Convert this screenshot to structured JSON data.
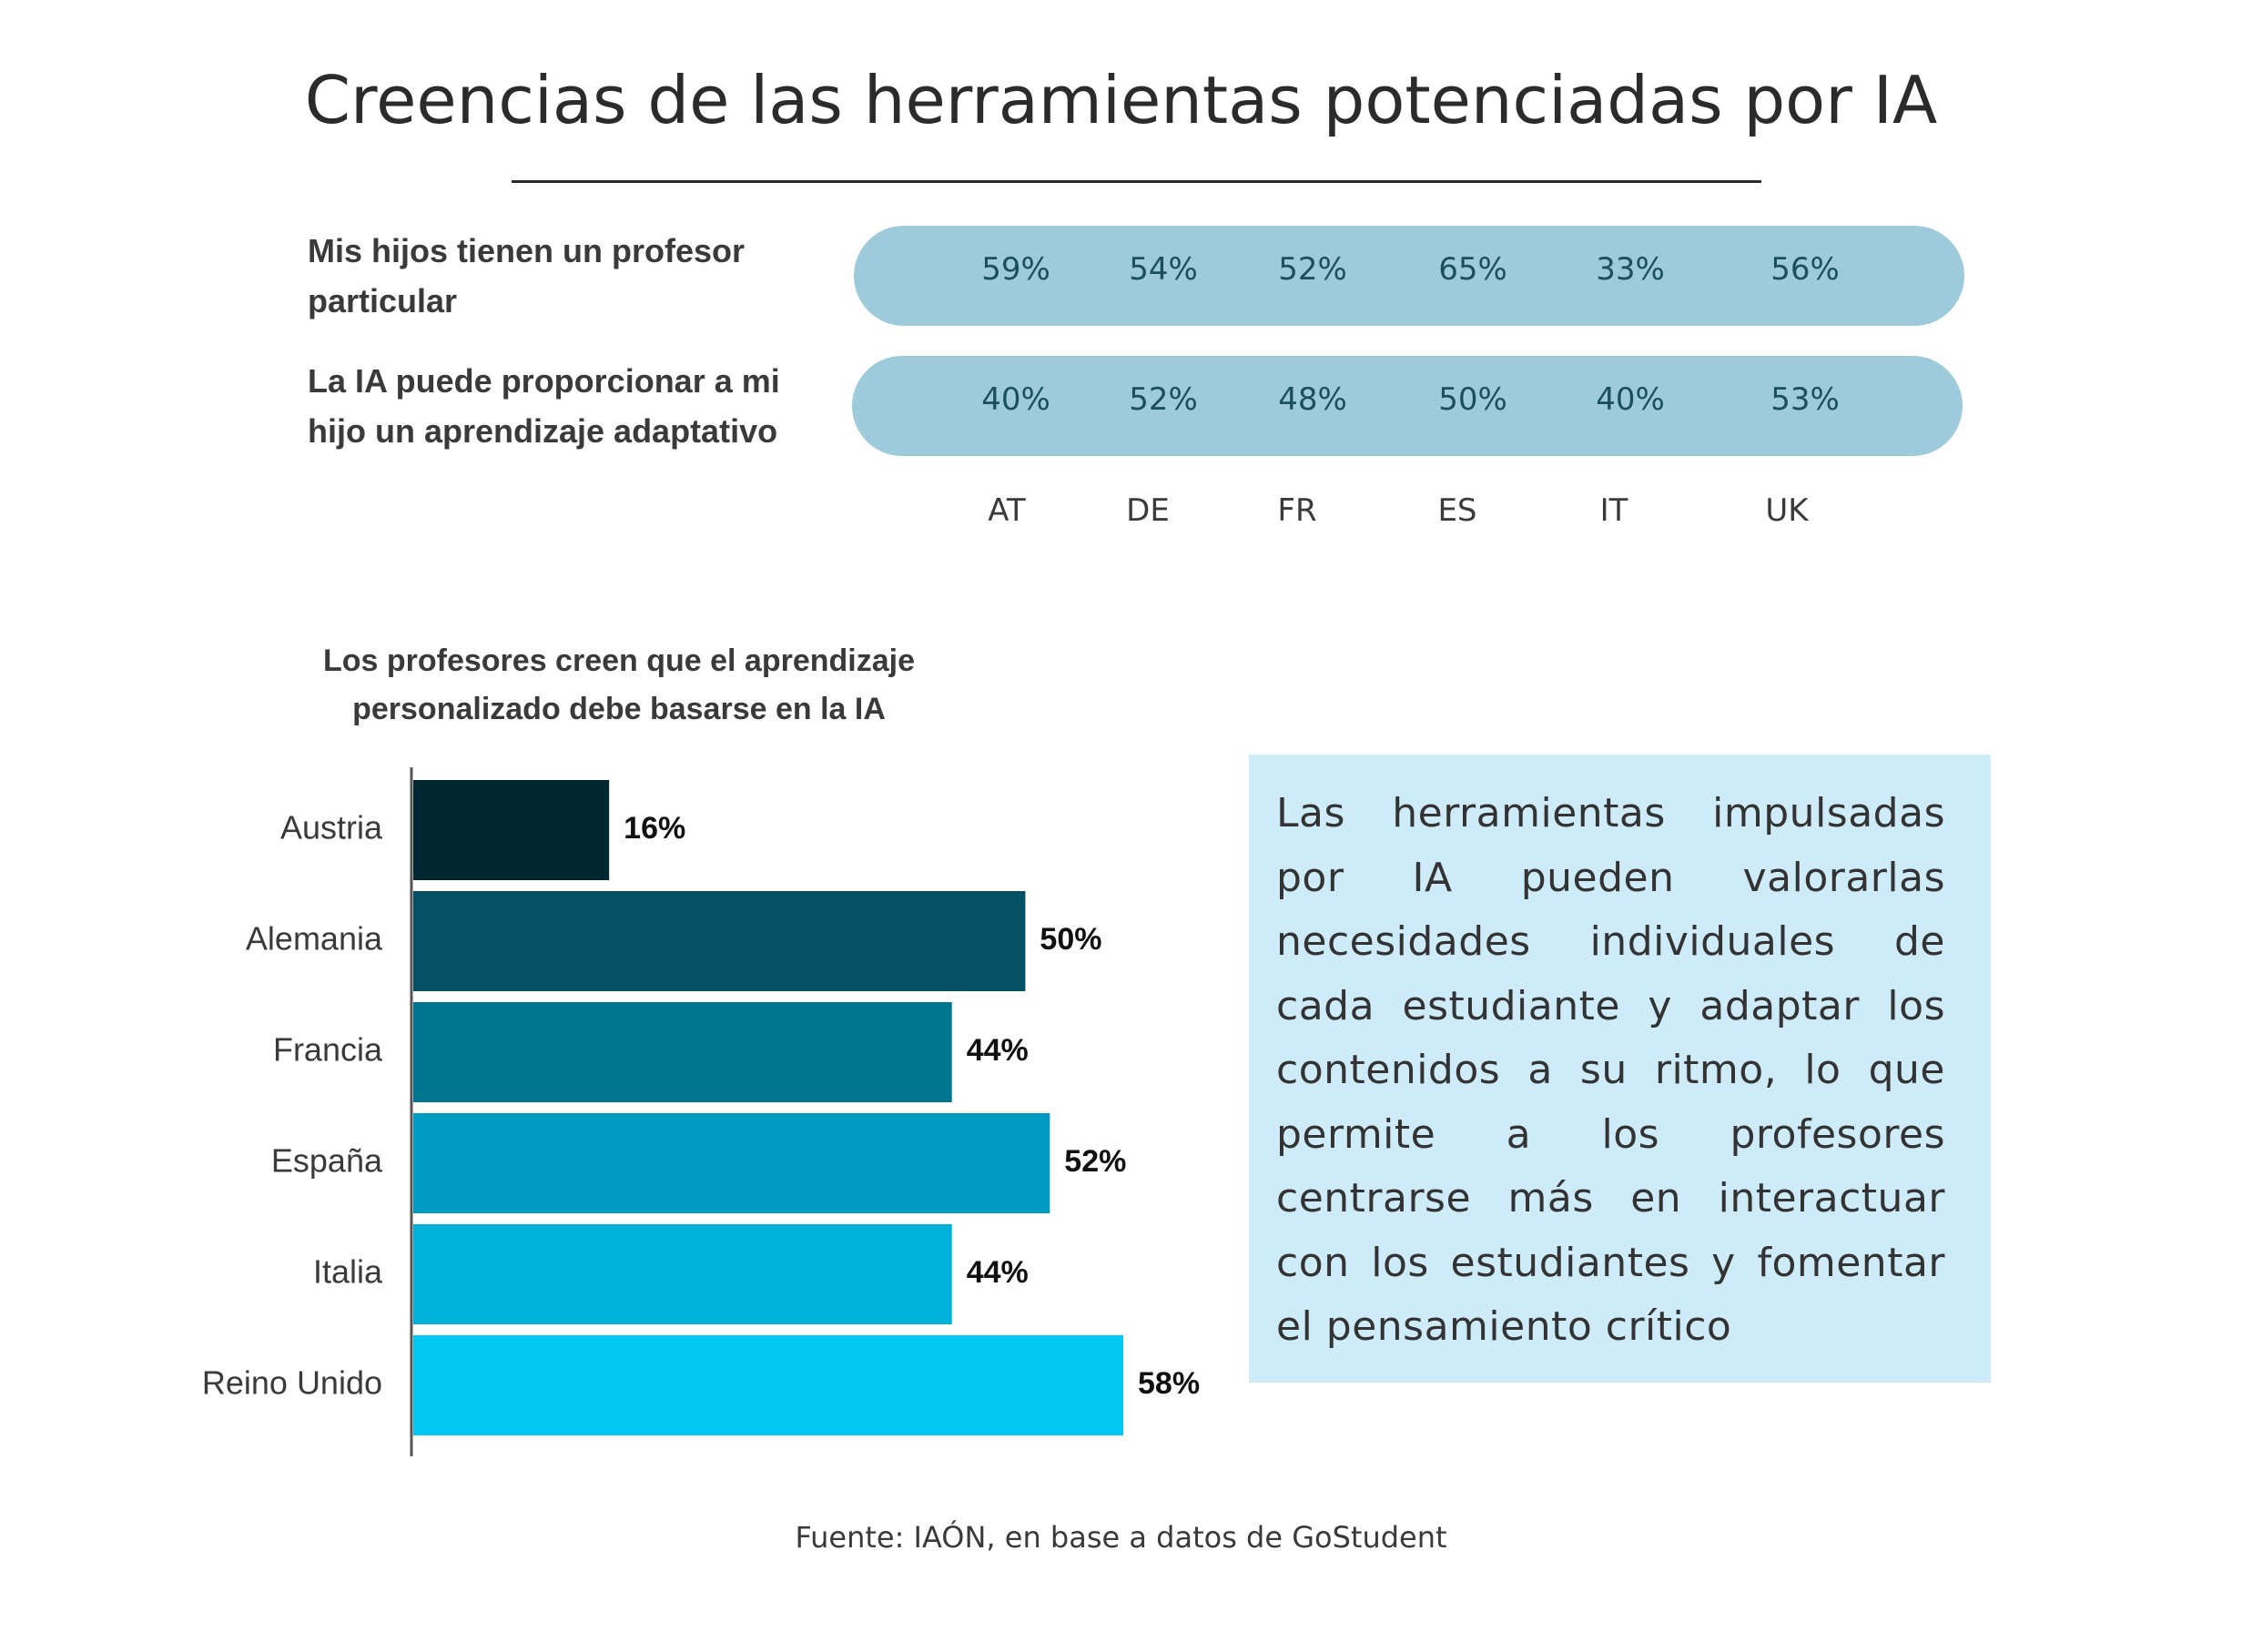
{
  "title": "Creencias de las herramientas potenciadas por IA",
  "country_codes": [
    "AT",
    "DE",
    "FR",
    "ES",
    "IT",
    "UK"
  ],
  "rows": [
    {
      "label": "Mis hijos tienen un profesor particular",
      "values": [
        "59%",
        "54%",
        "52%",
        "65%",
        "33%",
        "56%"
      ]
    },
    {
      "label": "La IA puede proporcionar a mi hijo un aprendizaje adaptativo",
      "values": [
        "40%",
        "52%",
        "48%",
        "50%",
        "40%",
        "53%"
      ]
    }
  ],
  "colors": {
    "pill": "#9ecbdb",
    "pill_text": "#1a4f5f",
    "info_box": "#cdebf8",
    "bars": [
      "#002833",
      "#034f63",
      "#007590",
      "#009bc2",
      "#00b2d9",
      "#00c8f2"
    ]
  },
  "chart_data": {
    "type": "bar",
    "orientation": "horizontal",
    "title": "Los profesores creen que el aprendizaje personalizado debe basarse en la IA",
    "categories": [
      "Austria",
      "Alemania",
      "Francia",
      "España",
      "Italia",
      "Reino Unido"
    ],
    "values": [
      16,
      50,
      44,
      52,
      44,
      58
    ],
    "value_labels": [
      "16%",
      "50%",
      "44%",
      "52%",
      "44%",
      "58%"
    ],
    "xlim": [
      0,
      100
    ],
    "grid": false
  },
  "info_text": "Las herramientas impulsadas por IA pueden valorarlas necesidades individuales de cada estudiante y adaptar los contenidos a su ritmo, lo que permite a los profesores centrarse más en interactuar con los estudiantes y fomentar el pensamiento crítico",
  "source": "Fuente: IAÓN, en base a datos de GoStudent"
}
